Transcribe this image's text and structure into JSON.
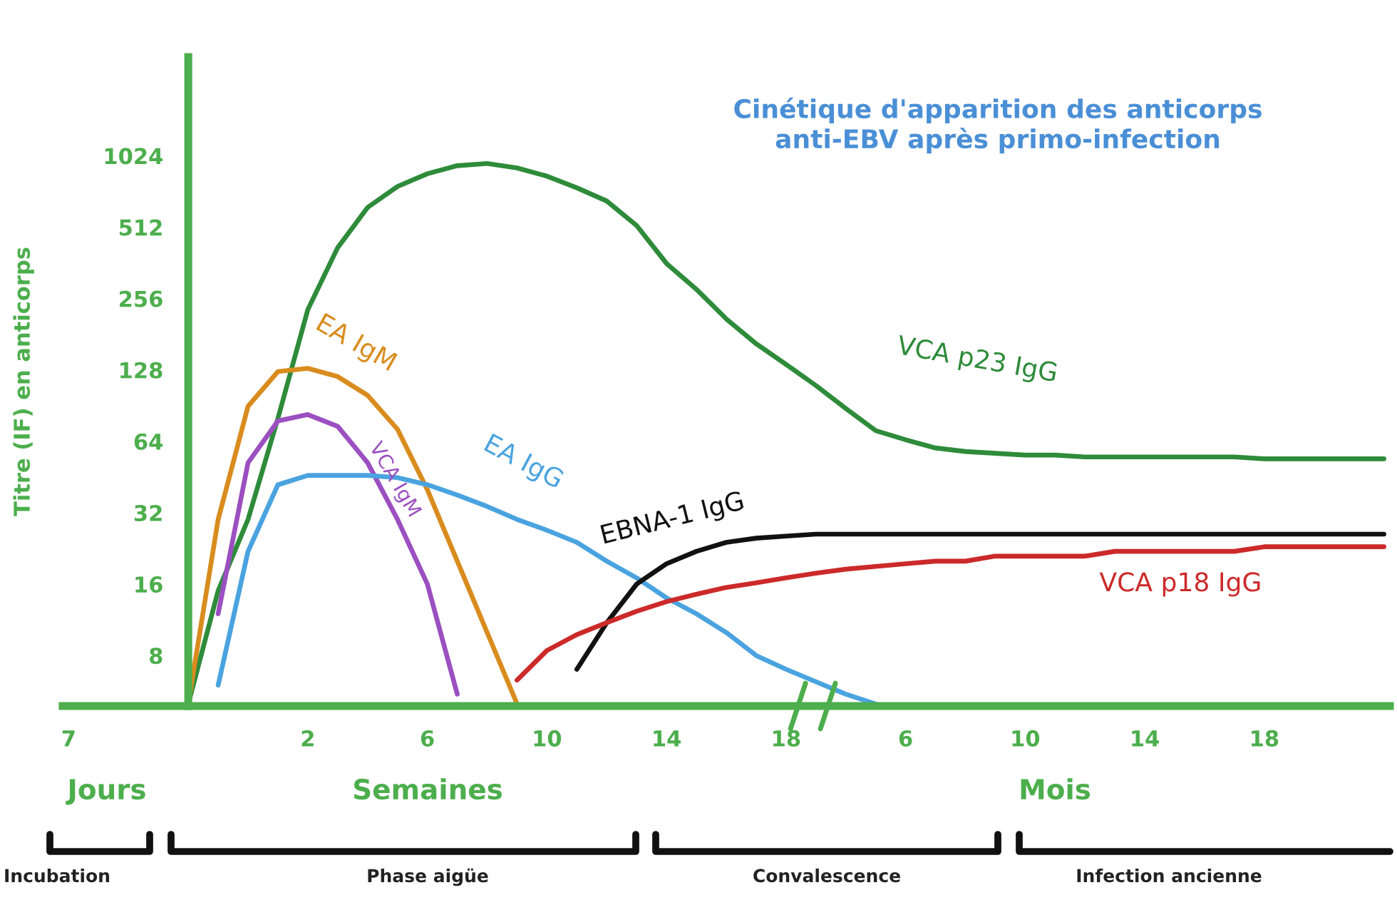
{
  "chart_data": {
    "type": "line",
    "title": "Cinétique d'apparition des anticorps\nanti-EBV après primo-infection",
    "ylabel": "Titre (IF) en anticorps",
    "log": "y",
    "categories": [
      "7",
      null,
      null,
      null,
      null,
      null,
      null,
      null,
      "2",
      null,
      null,
      null,
      "6",
      null,
      null,
      null,
      "10",
      null,
      null,
      null,
      "14",
      null,
      null,
      null,
      "18",
      null,
      null,
      null,
      "6",
      null,
      null,
      null,
      "10",
      null,
      null,
      null,
      "14",
      null,
      null,
      null,
      "18",
      null,
      null,
      null,
      null
    ],
    "ylim": [
      4.9,
      2670
    ],
    "yticks": [
      8,
      16,
      32,
      64,
      128,
      256,
      512,
      1024
    ],
    "grid": false,
    "legend": false,
    "series": [
      {
        "name": "VCA p23 IgG",
        "color": "#2e8b3a",
        "values": [
          null,
          null,
          null,
          null,
          5.0,
          15,
          30,
          80,
          230,
          420,
          620,
          760,
          860,
          930,
          950,
          910,
          840,
          750,
          660,
          520,
          360,
          280,
          210,
          165,
          135,
          110,
          88,
          71,
          65,
          60,
          58,
          57,
          56,
          56,
          55,
          55,
          55,
          55,
          55,
          55,
          54,
          54,
          54,
          54,
          54
        ]
      },
      {
        "name": "EA IgM",
        "color": "#d98c1e",
        "values": [
          null,
          null,
          null,
          null,
          5.0,
          30,
          90,
          126,
          130,
          120,
          100,
          72,
          40,
          20,
          10,
          5.0,
          null,
          null,
          null,
          null,
          null,
          null,
          null,
          null,
          null,
          null,
          null,
          null,
          null,
          null,
          null,
          null,
          null,
          null,
          null,
          null,
          null,
          null,
          null,
          null,
          null,
          null,
          null,
          null,
          null
        ]
      },
      {
        "name": "VCA IgM",
        "color": "#9b4fc0",
        "values": [
          null,
          null,
          null,
          null,
          null,
          12,
          52,
          78,
          83,
          74,
          52,
          30,
          16,
          5.5,
          null,
          null,
          null,
          null,
          null,
          null,
          null,
          null,
          null,
          null,
          null,
          null,
          null,
          null,
          null,
          null,
          null,
          null,
          null,
          null,
          null,
          null,
          null,
          null,
          null,
          null,
          null,
          null,
          null,
          null,
          null
        ]
      },
      {
        "name": "EA IgG",
        "color": "#4aa3df",
        "values": [
          null,
          null,
          null,
          null,
          null,
          6,
          22,
          42,
          46,
          46,
          46,
          45,
          42,
          38,
          34,
          30,
          27,
          24,
          20,
          17,
          14,
          12,
          10,
          8,
          7.0,
          6.2,
          5.5,
          5.0,
          null,
          null,
          null,
          null,
          null,
          null,
          null,
          null,
          null,
          null,
          null,
          null,
          null,
          null,
          null,
          null,
          null
        ]
      },
      {
        "name": "EBNA-1 IgG",
        "color": "#111111",
        "values": [
          null,
          null,
          null,
          null,
          null,
          null,
          null,
          null,
          null,
          null,
          null,
          null,
          null,
          null,
          null,
          null,
          null,
          7,
          11,
          16,
          19.5,
          22,
          24,
          25,
          25.5,
          26,
          26,
          26,
          26,
          26,
          26,
          26,
          26,
          26,
          26,
          26,
          26,
          26,
          26,
          26,
          26,
          26,
          26,
          26,
          26
        ]
      },
      {
        "name": "VCA p18 IgG",
        "color": "#cc2a2a",
        "values": [
          null,
          null,
          null,
          null,
          null,
          null,
          null,
          null,
          null,
          null,
          null,
          null,
          null,
          null,
          null,
          6.3,
          8.4,
          9.8,
          11,
          12.3,
          13.5,
          14.5,
          15.5,
          16.2,
          17,
          17.8,
          18.5,
          19,
          19.5,
          20,
          20,
          21,
          21,
          21,
          21,
          22,
          22,
          22,
          22,
          22,
          23,
          23,
          23,
          23,
          23
        ]
      }
    ],
    "annotations": [
      "Jours",
      "Semaines",
      "Mois",
      "Incubation",
      "Phase aigüe",
      "Convalescence",
      "Infection ancienne"
    ]
  }
}
